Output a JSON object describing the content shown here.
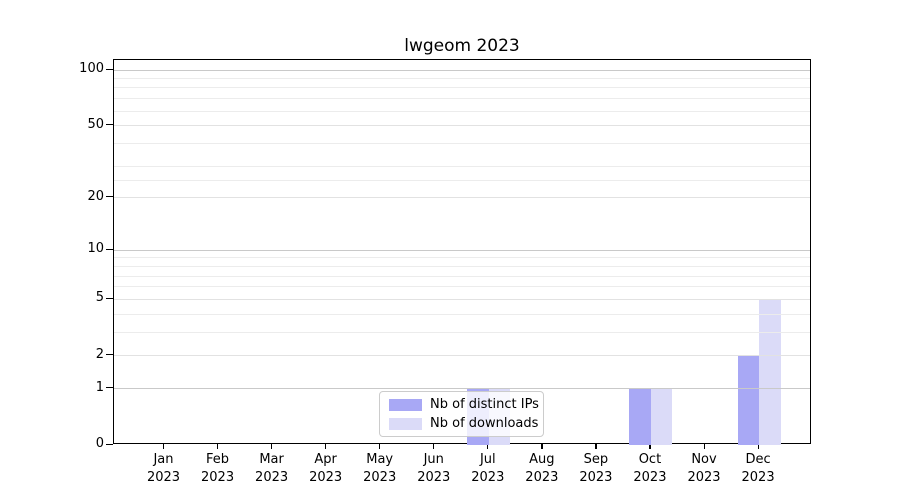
{
  "title": "lwgeom 2023",
  "legend": {
    "items": [
      {
        "label": "Nb of distinct IPs",
        "color": "#a8a8f5"
      },
      {
        "label": "Nb of downloads",
        "color": "#dbdbf8"
      }
    ]
  },
  "chart_data": {
    "type": "bar",
    "title": "lwgeom 2023",
    "categories": [
      "Jan 2023",
      "Feb 2023",
      "Mar 2023",
      "Apr 2023",
      "May 2023",
      "Jun 2023",
      "Jul 2023",
      "Aug 2023",
      "Sep 2023",
      "Oct 2023",
      "Nov 2023",
      "Dec 2023"
    ],
    "series": [
      {
        "name": "Nb of distinct IPs",
        "color": "#a8a8f5",
        "values": [
          0,
          0,
          0,
          0,
          0,
          0,
          1,
          0,
          0,
          1,
          0,
          2
        ]
      },
      {
        "name": "Nb of downloads",
        "color": "#dbdbf8",
        "values": [
          0,
          0,
          0,
          0,
          0,
          0,
          1,
          0,
          0,
          1,
          0,
          5
        ]
      }
    ],
    "xlabel": "",
    "ylabel": "",
    "yscale": "log1p",
    "ylim": [
      0,
      113.3
    ],
    "y_major_ticks": [
      0,
      1,
      2,
      5,
      10,
      20,
      50,
      100
    ],
    "y_minor_ticks": [
      3,
      4,
      6,
      7,
      8,
      9,
      25,
      30,
      40,
      60,
      70,
      80,
      90
    ],
    "grid": "horizontal",
    "legend_position": "lower-center-inside"
  },
  "colors": {
    "grid_decade": "#c9c9c9",
    "grid_major": "#e2e2e2",
    "grid_minor": "#ececec",
    "axis": "#000000",
    "legend_border": "#cccccc"
  }
}
